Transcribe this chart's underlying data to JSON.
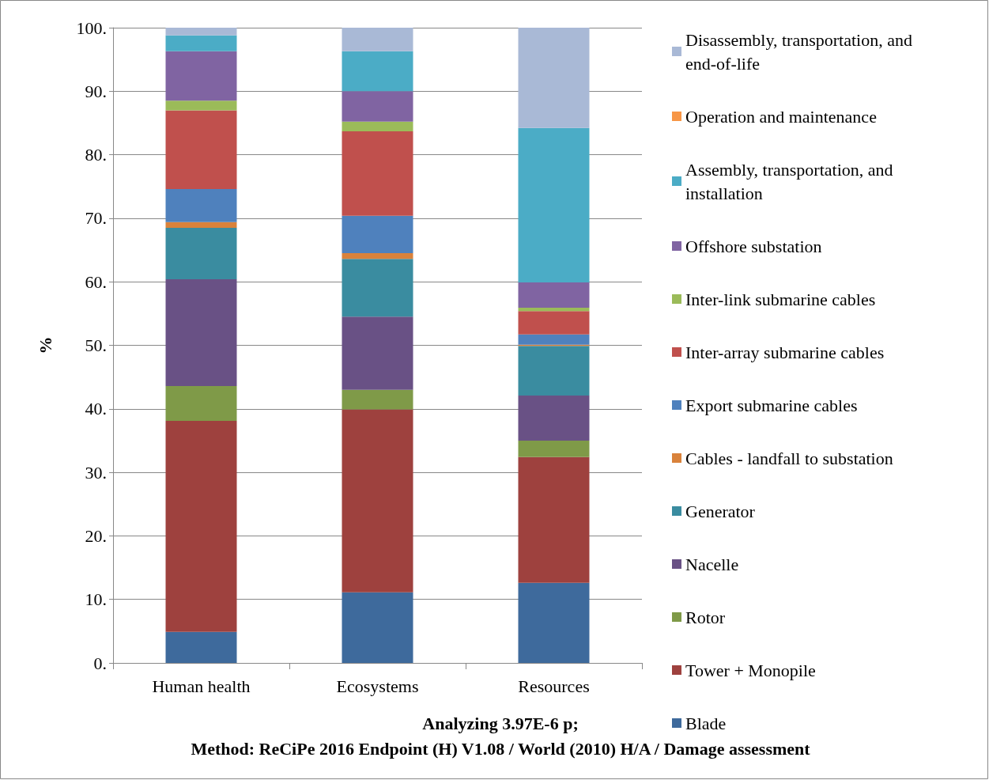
{
  "chart_data": {
    "type": "bar",
    "stacked": true,
    "title": "Analyzing 3.97E-6 p;\nMethod: ReCiPe 2016 Endpoint (H) V1.08 / World (2010) H/A / Damage assessment",
    "ylabel": "%",
    "categories": [
      "Human health",
      "Ecosystems",
      "Resources"
    ],
    "ylim": [
      0,
      100
    ],
    "yticks": [
      {
        "value": 0,
        "label": "0."
      },
      {
        "value": 10,
        "label": "10."
      },
      {
        "value": 20,
        "label": "20."
      },
      {
        "value": 30,
        "label": "30."
      },
      {
        "value": 40,
        "label": "40."
      },
      {
        "value": 50,
        "label": "50."
      },
      {
        "value": 60,
        "label": "60."
      },
      {
        "value": 70,
        "label": "70."
      },
      {
        "value": 80,
        "label": "80."
      },
      {
        "value": 90,
        "label": "90."
      },
      {
        "value": 100,
        "label": "100."
      }
    ],
    "grid": "y",
    "legend": "right",
    "series": [
      {
        "name": "Blade",
        "color": "#3e6a9c",
        "values": [
          4.9,
          11.1,
          12.6
        ]
      },
      {
        "name": "Tower + Monopile",
        "color": "#9e413e",
        "values": [
          33.2,
          28.8,
          19.8
        ]
      },
      {
        "name": "Rotor",
        "color": "#7f9a48",
        "values": [
          5.5,
          3.1,
          2.6
        ]
      },
      {
        "name": "Nacelle",
        "color": "#695185",
        "values": [
          16.8,
          11.5,
          7.1
        ]
      },
      {
        "name": "Generator",
        "color": "#3a8ca0",
        "values": [
          8.1,
          9.1,
          7.8
        ]
      },
      {
        "name": "Cables - landfall to substation",
        "color": "#d9823b",
        "values": [
          0.9,
          0.9,
          0.2
        ]
      },
      {
        "name": "Export submarine cables",
        "color": "#4f81bd",
        "values": [
          5.2,
          5.9,
          1.6
        ]
      },
      {
        "name": "Inter-array submarine cables",
        "color": "#c0504d",
        "values": [
          12.4,
          13.3,
          3.7
        ]
      },
      {
        "name": "Inter-link submarine cables",
        "color": "#9bbb59",
        "values": [
          1.5,
          1.5,
          0.5
        ]
      },
      {
        "name": "Offshore substation",
        "color": "#8064a2",
        "values": [
          7.8,
          4.8,
          4.0
        ]
      },
      {
        "name": "Assembly, transportation, and installation",
        "color": "#4bacc6",
        "values": [
          2.5,
          6.3,
          24.3
        ]
      },
      {
        "name": "Operation and maintenance",
        "color": "#f79646",
        "values": [
          0,
          0,
          0
        ]
      },
      {
        "name": "Disassembly, transportation, and end-of-life",
        "color": "#a9b9d6",
        "values": [
          1.2,
          3.7,
          15.8
        ]
      }
    ]
  }
}
